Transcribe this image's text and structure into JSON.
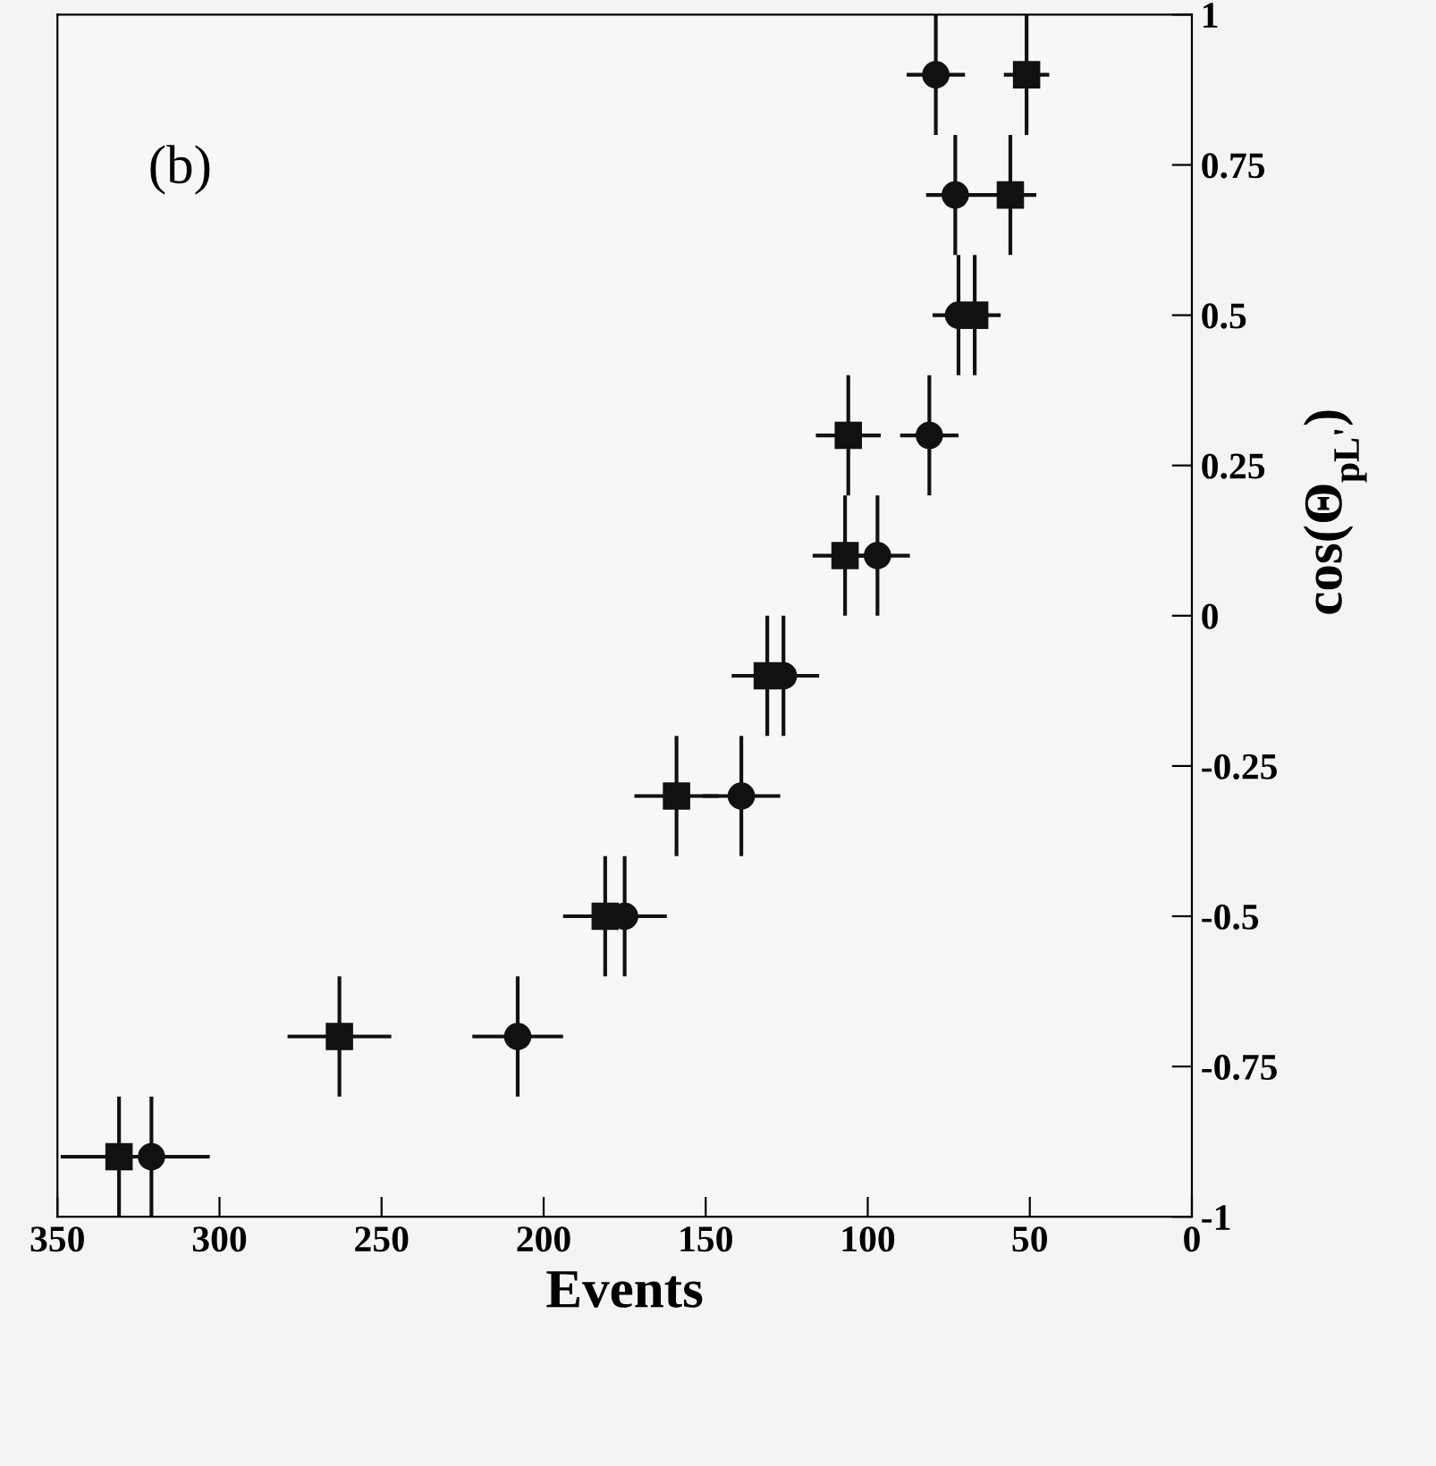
{
  "chart_data": {
    "type": "scatter",
    "xlabel": "Events",
    "ylabel": "cos(Θ$_{pL'}$)",
    "annotations": [
      "(b)"
    ],
    "xlim": [
      350,
      0
    ],
    "xticks": [
      350,
      300,
      250,
      200,
      150,
      100,
      50,
      0
    ],
    "ylim": [
      -1,
      1
    ],
    "yticks": [
      -1,
      -0.75,
      -0.5,
      -0.25,
      0,
      0.25,
      0.5,
      0.75,
      1
    ],
    "grid": false,
    "series": [
      {
        "marker": "square",
        "color": "#111111",
        "x": [
          331,
          263,
          181,
          159,
          131,
          107,
          106,
          67,
          56,
          51
        ],
        "values": [
          -0.9,
          -0.7,
          -0.5,
          -0.3,
          -0.1,
          0.1,
          0.3,
          0.5,
          0.7,
          0.9
        ],
        "xerrors": [
          18,
          16,
          13,
          13,
          11,
          10,
          10,
          8,
          8,
          7
        ],
        "errors": [
          0.1,
          0.1,
          0.1,
          0.1,
          0.1,
          0.1,
          0.1,
          0.1,
          0.1,
          0.1
        ]
      },
      {
        "marker": "circle",
        "color": "#111111",
        "x": [
          321,
          208,
          175,
          139,
          126,
          97,
          81,
          72,
          73,
          79
        ],
        "values": [
          -0.9,
          -0.7,
          -0.5,
          -0.3,
          -0.1,
          0.1,
          0.3,
          0.5,
          0.7,
          0.9
        ],
        "xerrors": [
          18,
          14,
          13,
          12,
          11,
          10,
          9,
          8,
          9,
          9
        ],
        "errors": [
          0.1,
          0.1,
          0.1,
          0.1,
          0.1,
          0.1,
          0.1,
          0.1,
          0.1,
          0.1
        ]
      }
    ]
  }
}
